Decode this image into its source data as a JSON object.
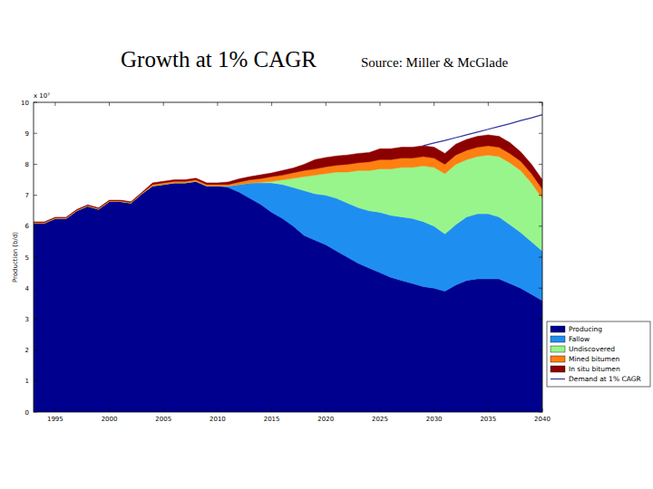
{
  "chart_data": {
    "type": "area",
    "stacked": true,
    "title": "Growth at 1% CAGR",
    "subtitle": "Source: Miller & McGlade",
    "y_label": "Production (b/d)",
    "annotations": [
      "x 10⁷"
    ],
    "x": [
      1993,
      1994,
      1995,
      1996,
      1997,
      1998,
      1999,
      2000,
      2001,
      2002,
      2003,
      2004,
      2005,
      2006,
      2007,
      2008,
      2009,
      2010,
      2011,
      2012,
      2013,
      2014,
      2015,
      2016,
      2017,
      2018,
      2019,
      2020,
      2021,
      2022,
      2023,
      2024,
      2025,
      2026,
      2027,
      2028,
      2029,
      2030,
      2031,
      2032,
      2033,
      2034,
      2035,
      2036,
      2037,
      2038,
      2039,
      2040
    ],
    "xlim": [
      1993,
      2040
    ],
    "xticks": [
      1995,
      2000,
      2005,
      2010,
      2015,
      2020,
      2025,
      2030,
      2035,
      2040
    ],
    "ylim": [
      0,
      10
    ],
    "yticks": [
      0,
      1,
      2,
      3,
      4,
      5,
      6,
      7,
      8,
      9,
      10
    ],
    "grid": false,
    "legend": "lower right",
    "series": [
      {
        "name": "Producing",
        "type": "area",
        "color": "#00008f",
        "values": [
          6.1,
          6.1,
          6.25,
          6.25,
          6.5,
          6.65,
          6.55,
          6.8,
          6.8,
          6.75,
          7.05,
          7.3,
          7.35,
          7.4,
          7.4,
          7.45,
          7.3,
          7.3,
          7.25,
          7.1,
          6.9,
          6.7,
          6.45,
          6.25,
          6.0,
          5.7,
          5.55,
          5.4,
          5.2,
          5.0,
          4.8,
          4.65,
          4.5,
          4.35,
          4.25,
          4.15,
          4.05,
          4.0,
          3.9,
          4.1,
          4.25,
          4.3,
          4.3,
          4.3,
          4.15,
          4.0,
          3.8,
          3.6
        ]
      },
      {
        "name": "Fallow",
        "type": "area",
        "color": "#1e8ff0",
        "values": [
          0,
          0,
          0,
          0,
          0,
          0,
          0,
          0,
          0,
          0,
          0,
          0,
          0,
          0,
          0,
          0,
          0,
          0,
          0.05,
          0.25,
          0.5,
          0.7,
          0.95,
          1.1,
          1.25,
          1.45,
          1.5,
          1.6,
          1.7,
          1.75,
          1.8,
          1.85,
          1.95,
          2.0,
          2.05,
          2.1,
          2.1,
          2.0,
          1.85,
          1.95,
          2.05,
          2.1,
          2.1,
          2.0,
          1.9,
          1.8,
          1.7,
          1.6
        ]
      },
      {
        "name": "Undiscovered",
        "type": "area",
        "color": "#98f58c",
        "values": [
          0,
          0,
          0,
          0,
          0,
          0,
          0,
          0,
          0,
          0,
          0,
          0,
          0,
          0,
          0,
          0,
          0,
          0,
          0,
          0,
          0,
          0.02,
          0.05,
          0.15,
          0.3,
          0.45,
          0.6,
          0.7,
          0.85,
          1.0,
          1.2,
          1.3,
          1.4,
          1.5,
          1.6,
          1.65,
          1.8,
          1.9,
          1.95,
          1.95,
          1.85,
          1.85,
          1.9,
          1.95,
          2.0,
          2.0,
          1.9,
          1.7
        ]
      },
      {
        "name": "Mined bitumen",
        "type": "area",
        "color": "#ff7f10",
        "values": [
          0.02,
          0.02,
          0.02,
          0.02,
          0.02,
          0.02,
          0.02,
          0.02,
          0.02,
          0.02,
          0.02,
          0.05,
          0.05,
          0.05,
          0.05,
          0.05,
          0.05,
          0.05,
          0.05,
          0.08,
          0.1,
          0.12,
          0.15,
          0.15,
          0.18,
          0.2,
          0.2,
          0.22,
          0.22,
          0.25,
          0.25,
          0.28,
          0.3,
          0.3,
          0.3,
          0.3,
          0.3,
          0.3,
          0.3,
          0.3,
          0.3,
          0.3,
          0.3,
          0.3,
          0.3,
          0.3,
          0.3,
          0.3
        ]
      },
      {
        "name": "In situ bitumen",
        "type": "area",
        "color": "#8c0000",
        "values": [
          0.02,
          0.02,
          0.02,
          0.02,
          0.02,
          0.02,
          0.02,
          0.02,
          0.02,
          0.02,
          0.02,
          0.05,
          0.05,
          0.05,
          0.05,
          0.05,
          0.05,
          0.05,
          0.08,
          0.1,
          0.1,
          0.12,
          0.12,
          0.15,
          0.15,
          0.2,
          0.3,
          0.3,
          0.3,
          0.3,
          0.3,
          0.3,
          0.35,
          0.35,
          0.35,
          0.35,
          0.35,
          0.35,
          0.35,
          0.35,
          0.35,
          0.35,
          0.35,
          0.35,
          0.35,
          0.3,
          0.3,
          0.3
        ]
      },
      {
        "name": "Demand at 1% CAGR",
        "type": "line",
        "color": "#3333a0",
        "line_style": "solid",
        "values": [
          null,
          null,
          null,
          null,
          null,
          null,
          null,
          null,
          null,
          null,
          null,
          null,
          null,
          null,
          null,
          null,
          null,
          null,
          null,
          null,
          null,
          null,
          null,
          null,
          null,
          null,
          null,
          null,
          null,
          null,
          null,
          null,
          null,
          null,
          null,
          null,
          8.6,
          8.69,
          8.77,
          8.86,
          8.95,
          9.04,
          9.13,
          9.22,
          9.31,
          9.41,
          9.5,
          9.6
        ]
      }
    ]
  }
}
